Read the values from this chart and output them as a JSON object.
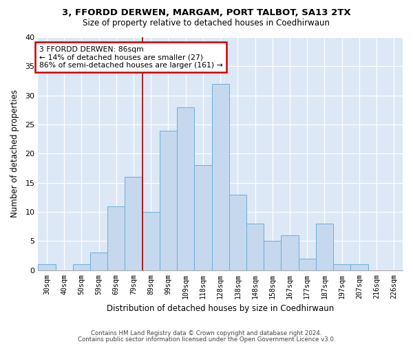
{
  "title1": "3, FFORDD DERWEN, MARGAM, PORT TALBOT, SA13 2TX",
  "title2": "Size of property relative to detached houses in Coedhirwaun",
  "xlabel": "Distribution of detached houses by size in Coedhirwaun",
  "ylabel": "Number of detached properties",
  "categories": [
    "30sqm",
    "40sqm",
    "50sqm",
    "59sqm",
    "69sqm",
    "79sqm",
    "89sqm",
    "99sqm",
    "109sqm",
    "118sqm",
    "128sqm",
    "138sqm",
    "148sqm",
    "158sqm",
    "167sqm",
    "177sqm",
    "187sqm",
    "197sqm",
    "207sqm",
    "216sqm",
    "226sqm"
  ],
  "values": [
    1,
    0,
    1,
    3,
    11,
    16,
    10,
    24,
    28,
    18,
    32,
    13,
    8,
    5,
    6,
    2,
    8,
    1,
    1,
    0,
    0
  ],
  "bar_color": "#c5d8ee",
  "bar_edge_color": "#6aaed6",
  "vline_x": 6.0,
  "vline_color": "#aa0000",
  "annotation_line1": "3 FFORDD DERWEN: 86sqm",
  "annotation_line2": "← 14% of detached houses are smaller (27)",
  "annotation_line3": "86% of semi-detached houses are larger (161) →",
  "annotation_box_color": "#ffffff",
  "annotation_box_edge_color": "#cc0000",
  "ylim": [
    0,
    40
  ],
  "yticks": [
    0,
    5,
    10,
    15,
    20,
    25,
    30,
    35,
    40
  ],
  "footer1": "Contains HM Land Registry data © Crown copyright and database right 2024.",
  "footer2": "Contains public sector information licensed under the Open Government Licence v3.0.",
  "fig_bg_color": "#ffffff",
  "plot_bg_color": "#dce8f5"
}
